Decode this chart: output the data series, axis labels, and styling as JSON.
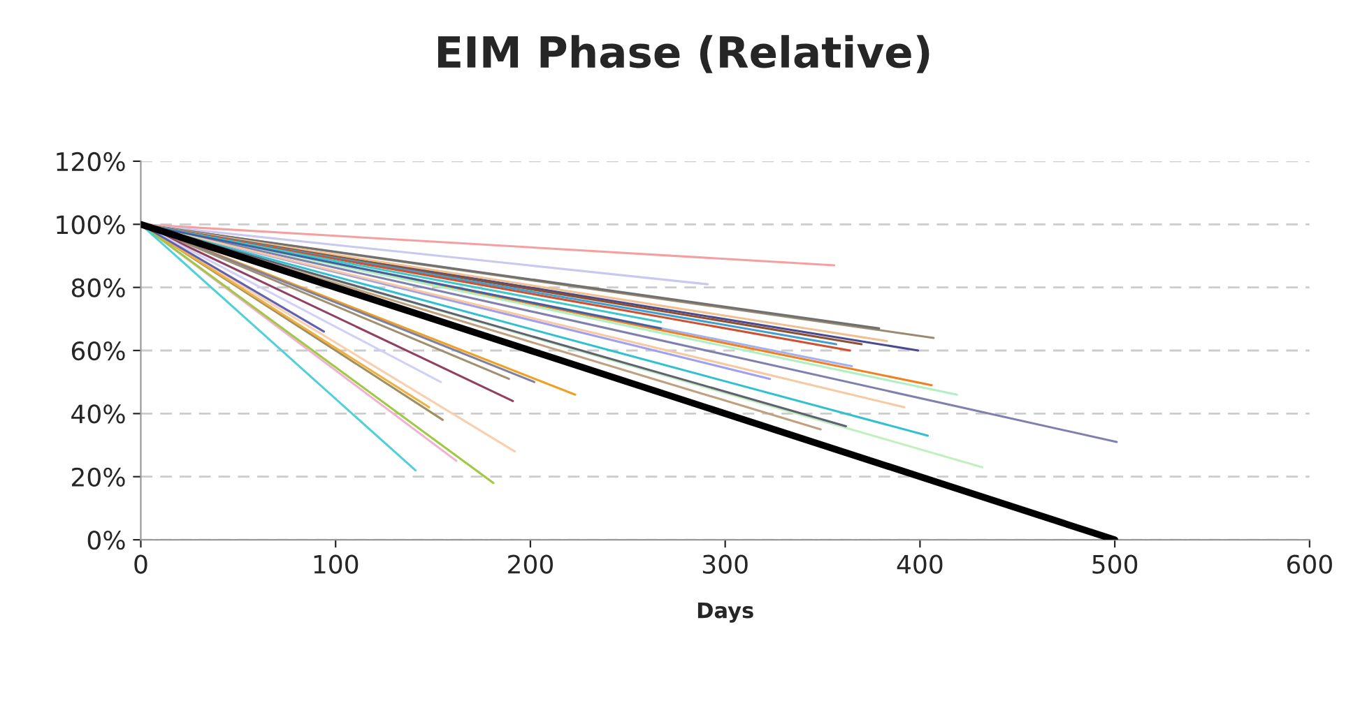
{
  "chart_data": {
    "type": "line",
    "title": "EIM Phase (Relative)",
    "xlabel": "Days",
    "xlim": [
      0,
      600
    ],
    "xticks": [
      0,
      100,
      200,
      300,
      400,
      500,
      600
    ],
    "ylim": [
      0,
      120
    ],
    "yticks": [
      {
        "value": 0,
        "label": "0%"
      },
      {
        "value": 20,
        "label": "20%"
      },
      {
        "value": 40,
        "label": "40%"
      },
      {
        "value": 60,
        "label": "60%"
      },
      {
        "value": 80,
        "label": "80%"
      },
      {
        "value": 100,
        "label": "100%"
      },
      {
        "value": 120,
        "label": "120%"
      }
    ],
    "grid": "y",
    "legend": false,
    "marker": "none",
    "line_style": "solid",
    "series": [
      {
        "color": "#f4a0a0",
        "x": [
          0,
          356
        ],
        "values": [
          100,
          87
        ]
      },
      {
        "color": "#c8c8f0",
        "x": [
          0,
          291
        ],
        "values": [
          100,
          81
        ]
      },
      {
        "color": "#9a8a70",
        "x": [
          0,
          407
        ],
        "values": [
          100,
          64
        ]
      },
      {
        "color": "#4a4a90",
        "x": [
          0,
          399
        ],
        "values": [
          100,
          60
        ]
      },
      {
        "color": "#707070",
        "x": [
          0,
          379
        ],
        "values": [
          100,
          67
        ]
      },
      {
        "color": "#f0c090",
        "x": [
          0,
          383
        ],
        "values": [
          100,
          63
        ]
      },
      {
        "color": "#905030",
        "x": [
          0,
          370
        ],
        "values": [
          100,
          62
        ]
      },
      {
        "color": "#40a0d0",
        "x": [
          0,
          357
        ],
        "values": [
          100,
          62
        ]
      },
      {
        "color": "#d05030",
        "x": [
          0,
          364
        ],
        "values": [
          100,
          60
        ]
      },
      {
        "color": "#a0b0f0",
        "x": [
          0,
          365
        ],
        "values": [
          100,
          55
        ]
      },
      {
        "color": "#f08020",
        "x": [
          0,
          406
        ],
        "values": [
          100,
          49
        ]
      },
      {
        "color": "#b0f0c0",
        "x": [
          0,
          419
        ],
        "values": [
          100,
          46
        ]
      },
      {
        "color": "#8080b0",
        "x": [
          0,
          501
        ],
        "values": [
          100,
          31
        ]
      },
      {
        "color": "#a0a0f0",
        "x": [
          0,
          323
        ],
        "values": [
          100,
          51
        ]
      },
      {
        "color": "#f8c8a0",
        "x": [
          0,
          392
        ],
        "values": [
          100,
          42
        ]
      },
      {
        "color": "#30c0d0",
        "x": [
          0,
          404
        ],
        "values": [
          100,
          33
        ]
      },
      {
        "color": "#c0f0c0",
        "x": [
          0,
          432
        ],
        "values": [
          100,
          23
        ]
      },
      {
        "color": "#606070",
        "x": [
          0,
          362
        ],
        "values": [
          100,
          36
        ]
      },
      {
        "color": "#c0a080",
        "x": [
          0,
          349
        ],
        "values": [
          100,
          35
        ]
      },
      {
        "color": "#40c8c8",
        "x": [
          0,
          267
        ],
        "values": [
          100,
          69
        ]
      },
      {
        "color": "#4060a0",
        "x": [
          0,
          267
        ],
        "values": [
          100,
          67
        ]
      },
      {
        "color": "#f0a020",
        "x": [
          0,
          223
        ],
        "values": [
          100,
          46
        ]
      },
      {
        "color": "#8080a0",
        "x": [
          0,
          202
        ],
        "values": [
          100,
          50
        ]
      },
      {
        "color": "#a09070",
        "x": [
          0,
          189
        ],
        "values": [
          100,
          51
        ]
      },
      {
        "color": "#904060",
        "x": [
          0,
          191
        ],
        "values": [
          100,
          44
        ]
      },
      {
        "color": "#d0d0f8",
        "x": [
          0,
          154
        ],
        "values": [
          100,
          50
        ]
      },
      {
        "color": "#f8d0b0",
        "x": [
          0,
          192
        ],
        "values": [
          100,
          28
        ]
      },
      {
        "color": "#a09060",
        "x": [
          0,
          155
        ],
        "values": [
          100,
          38
        ]
      },
      {
        "color": "#f0b040",
        "x": [
          0,
          148
        ],
        "values": [
          100,
          42
        ]
      },
      {
        "color": "#f0b0d0",
        "x": [
          0,
          162
        ],
        "values": [
          100,
          25
        ]
      },
      {
        "color": "#a0c840",
        "x": [
          0,
          181
        ],
        "values": [
          100,
          18
        ]
      },
      {
        "color": "#50d0d8",
        "x": [
          0,
          141
        ],
        "values": [
          100,
          22
        ]
      },
      {
        "color": "#6060b0",
        "x": [
          0,
          94
        ],
        "values": [
          100,
          66
        ]
      },
      {
        "color": "#000000",
        "x": [
          0,
          500
        ],
        "values": [
          100,
          0
        ]
      }
    ]
  }
}
